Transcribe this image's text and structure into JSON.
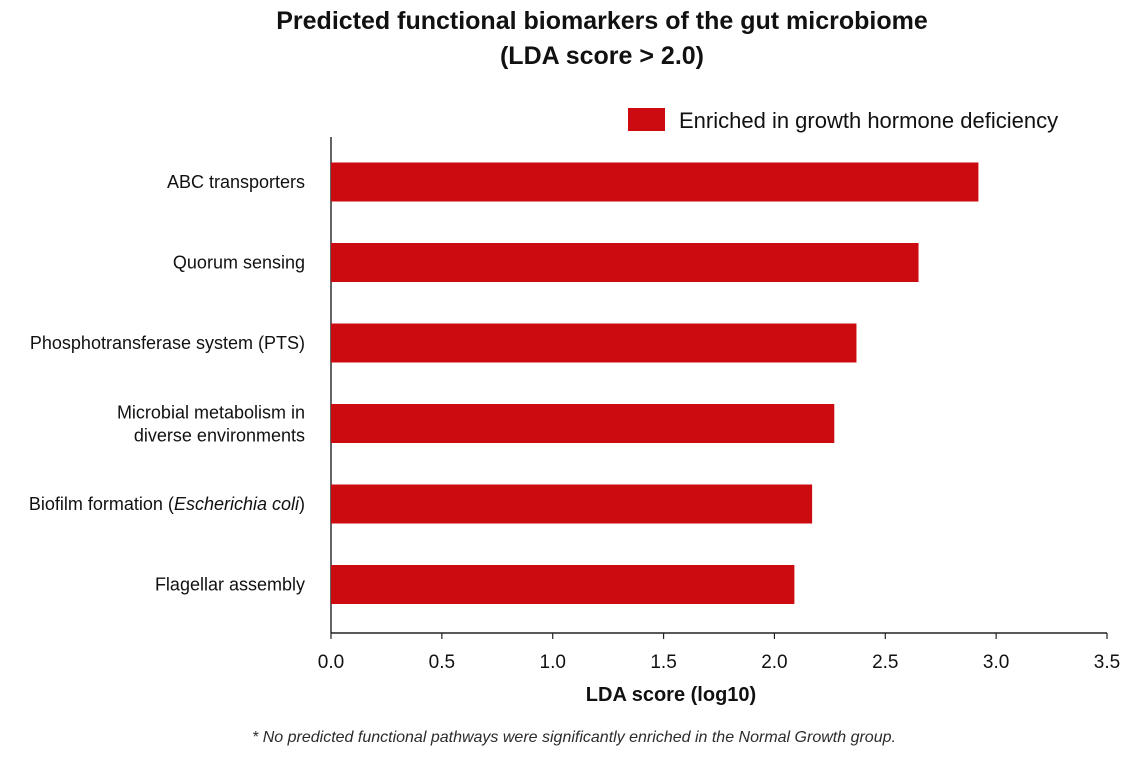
{
  "chart_data": {
    "type": "bar",
    "orientation": "horizontal",
    "title": [
      "Predicted functional biomarkers of the gut microbiome",
      "(LDA score > 2.0)"
    ],
    "xlabel": "LDA score (log10)",
    "ylabel": "",
    "xlim": [
      0,
      3.5
    ],
    "x_ticks": [
      "0.0",
      "0.5",
      "1.0",
      "1.5",
      "2.0",
      "2.5",
      "3.0",
      "3.5"
    ],
    "categories": [
      [
        "ABC transporters"
      ],
      [
        "Quorum sensing"
      ],
      [
        "Phosphotransferase system (PTS)"
      ],
      [
        "Microbial metabolism in",
        "diverse environments"
      ],
      [
        "Biofilm formation (Escherichia coli)"
      ],
      [
        "Flagellar assembly"
      ]
    ],
    "series": [
      {
        "name": "Enriched in growth hormone deficiency",
        "color": "#cc0b10",
        "values": [
          2.92,
          2.65,
          2.37,
          2.27,
          2.17,
          2.09
        ]
      }
    ],
    "legend": {
      "position": "top-right",
      "label": "Enriched in growth hormone deficiency"
    },
    "footnote": "* No predicted functional pathways were significantly enriched in the Normal Growth group.",
    "grid": false
  }
}
